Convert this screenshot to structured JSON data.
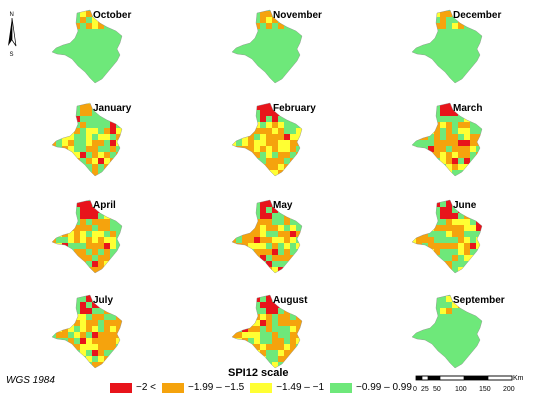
{
  "months": [
    {
      "label": "October",
      "intensity": 0.05
    },
    {
      "label": "November",
      "intensity": 0.08
    },
    {
      "label": "December",
      "intensity": 0.1
    },
    {
      "label": "January",
      "intensity": 0.45
    },
    {
      "label": "February",
      "intensity": 0.6
    },
    {
      "label": "March",
      "intensity": 0.55
    },
    {
      "label": "April",
      "intensity": 0.62
    },
    {
      "label": "May",
      "intensity": 0.7
    },
    {
      "label": "June",
      "intensity": 0.6
    },
    {
      "label": "July",
      "intensity": 0.65
    },
    {
      "label": "August",
      "intensity": 0.55
    },
    {
      "label": "September",
      "intensity": 0.0
    }
  ],
  "north": {
    "n_label": "N",
    "s_label": "S"
  },
  "crs": "WGS 1984",
  "legend": {
    "title": "SPI12 scale",
    "items": [
      {
        "label": "−2 <",
        "color": "#e8141b"
      },
      {
        "label": "−1.99 – −1.5",
        "color": "#f5a30d"
      },
      {
        "label": "−1.49 – −1",
        "color": "#ffff33"
      },
      {
        "label": "−0.99 – 0.99",
        "color": "#6ee87a"
      }
    ]
  },
  "scalebar": {
    "ticks": [
      "0",
      "25",
      "50",
      "100",
      "150",
      "200"
    ],
    "unit": "Km"
  }
}
